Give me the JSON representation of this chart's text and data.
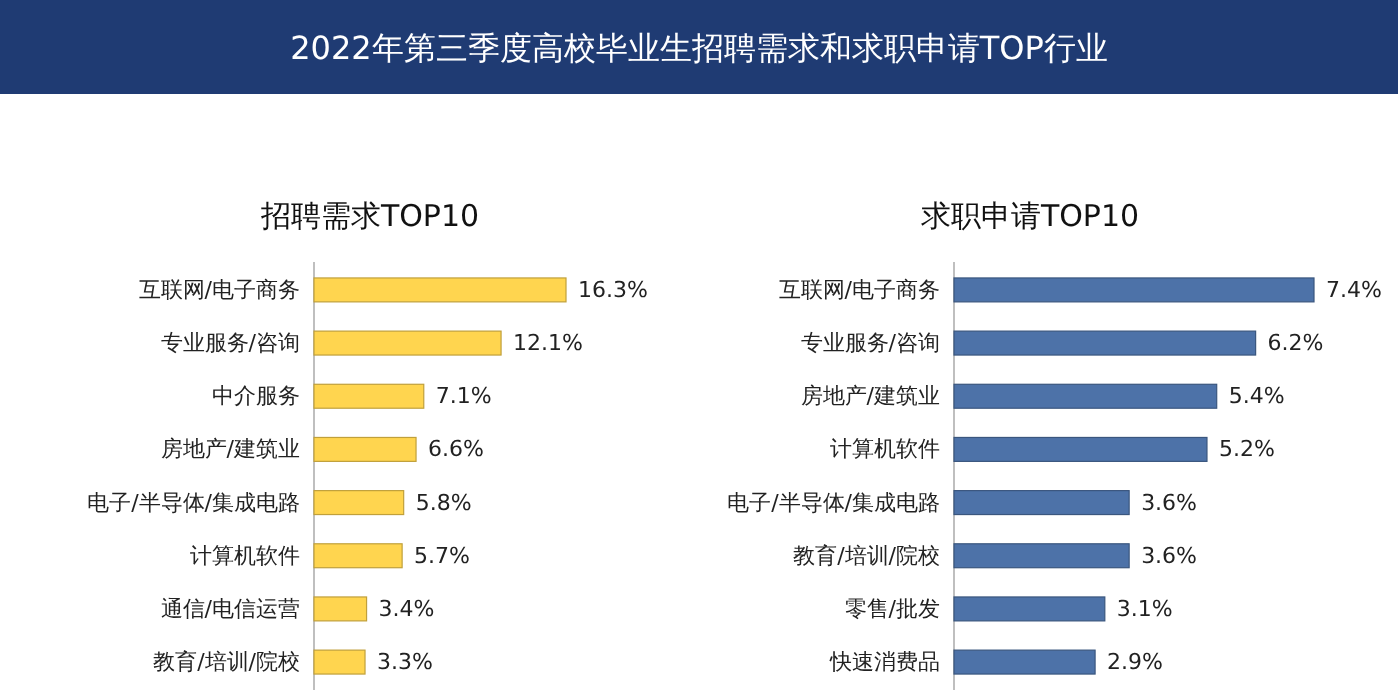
{
  "chart_data": [
    {
      "type": "bar",
      "orientation": "horizontal",
      "title": "2022年第三季度高校毕业生招聘需求和求职申请TOP行业",
      "subtitle": "招聘需求TOP10",
      "categories": [
        "互联网/电子商务",
        "专业服务/咨询",
        "中介服务",
        "房地产/建筑业",
        "电子/半导体/集成电路",
        "计算机软件",
        "通信/电信运营",
        "教育/培训/院校"
      ],
      "values": [
        16.3,
        12.1,
        7.1,
        6.6,
        5.8,
        5.7,
        3.4,
        3.3
      ],
      "color": "#ffd54f",
      "value_labels": [
        "16.3%",
        "12.1%",
        "7.1%",
        "6.6%",
        "5.8%",
        "5.7%",
        "3.4%",
        "3.3%"
      ]
    },
    {
      "type": "bar",
      "orientation": "horizontal",
      "subtitle": "求职申请TOP10",
      "categories": [
        "互联网/电子商务",
        "专业服务/咨询",
        "房地产/建筑业",
        "计算机软件",
        "电子/半导体/集成电路",
        "教育/培训/院校",
        "零售/批发",
        "快速消费品"
      ],
      "values": [
        7.4,
        6.2,
        5.4,
        5.2,
        3.6,
        3.6,
        3.1,
        2.9
      ],
      "color": "#4d72a8",
      "value_labels": [
        "7.4%",
        "6.2%",
        "5.4%",
        "5.2%",
        "3.6%",
        "3.6%",
        "3.1%",
        "2.9%"
      ]
    }
  ]
}
